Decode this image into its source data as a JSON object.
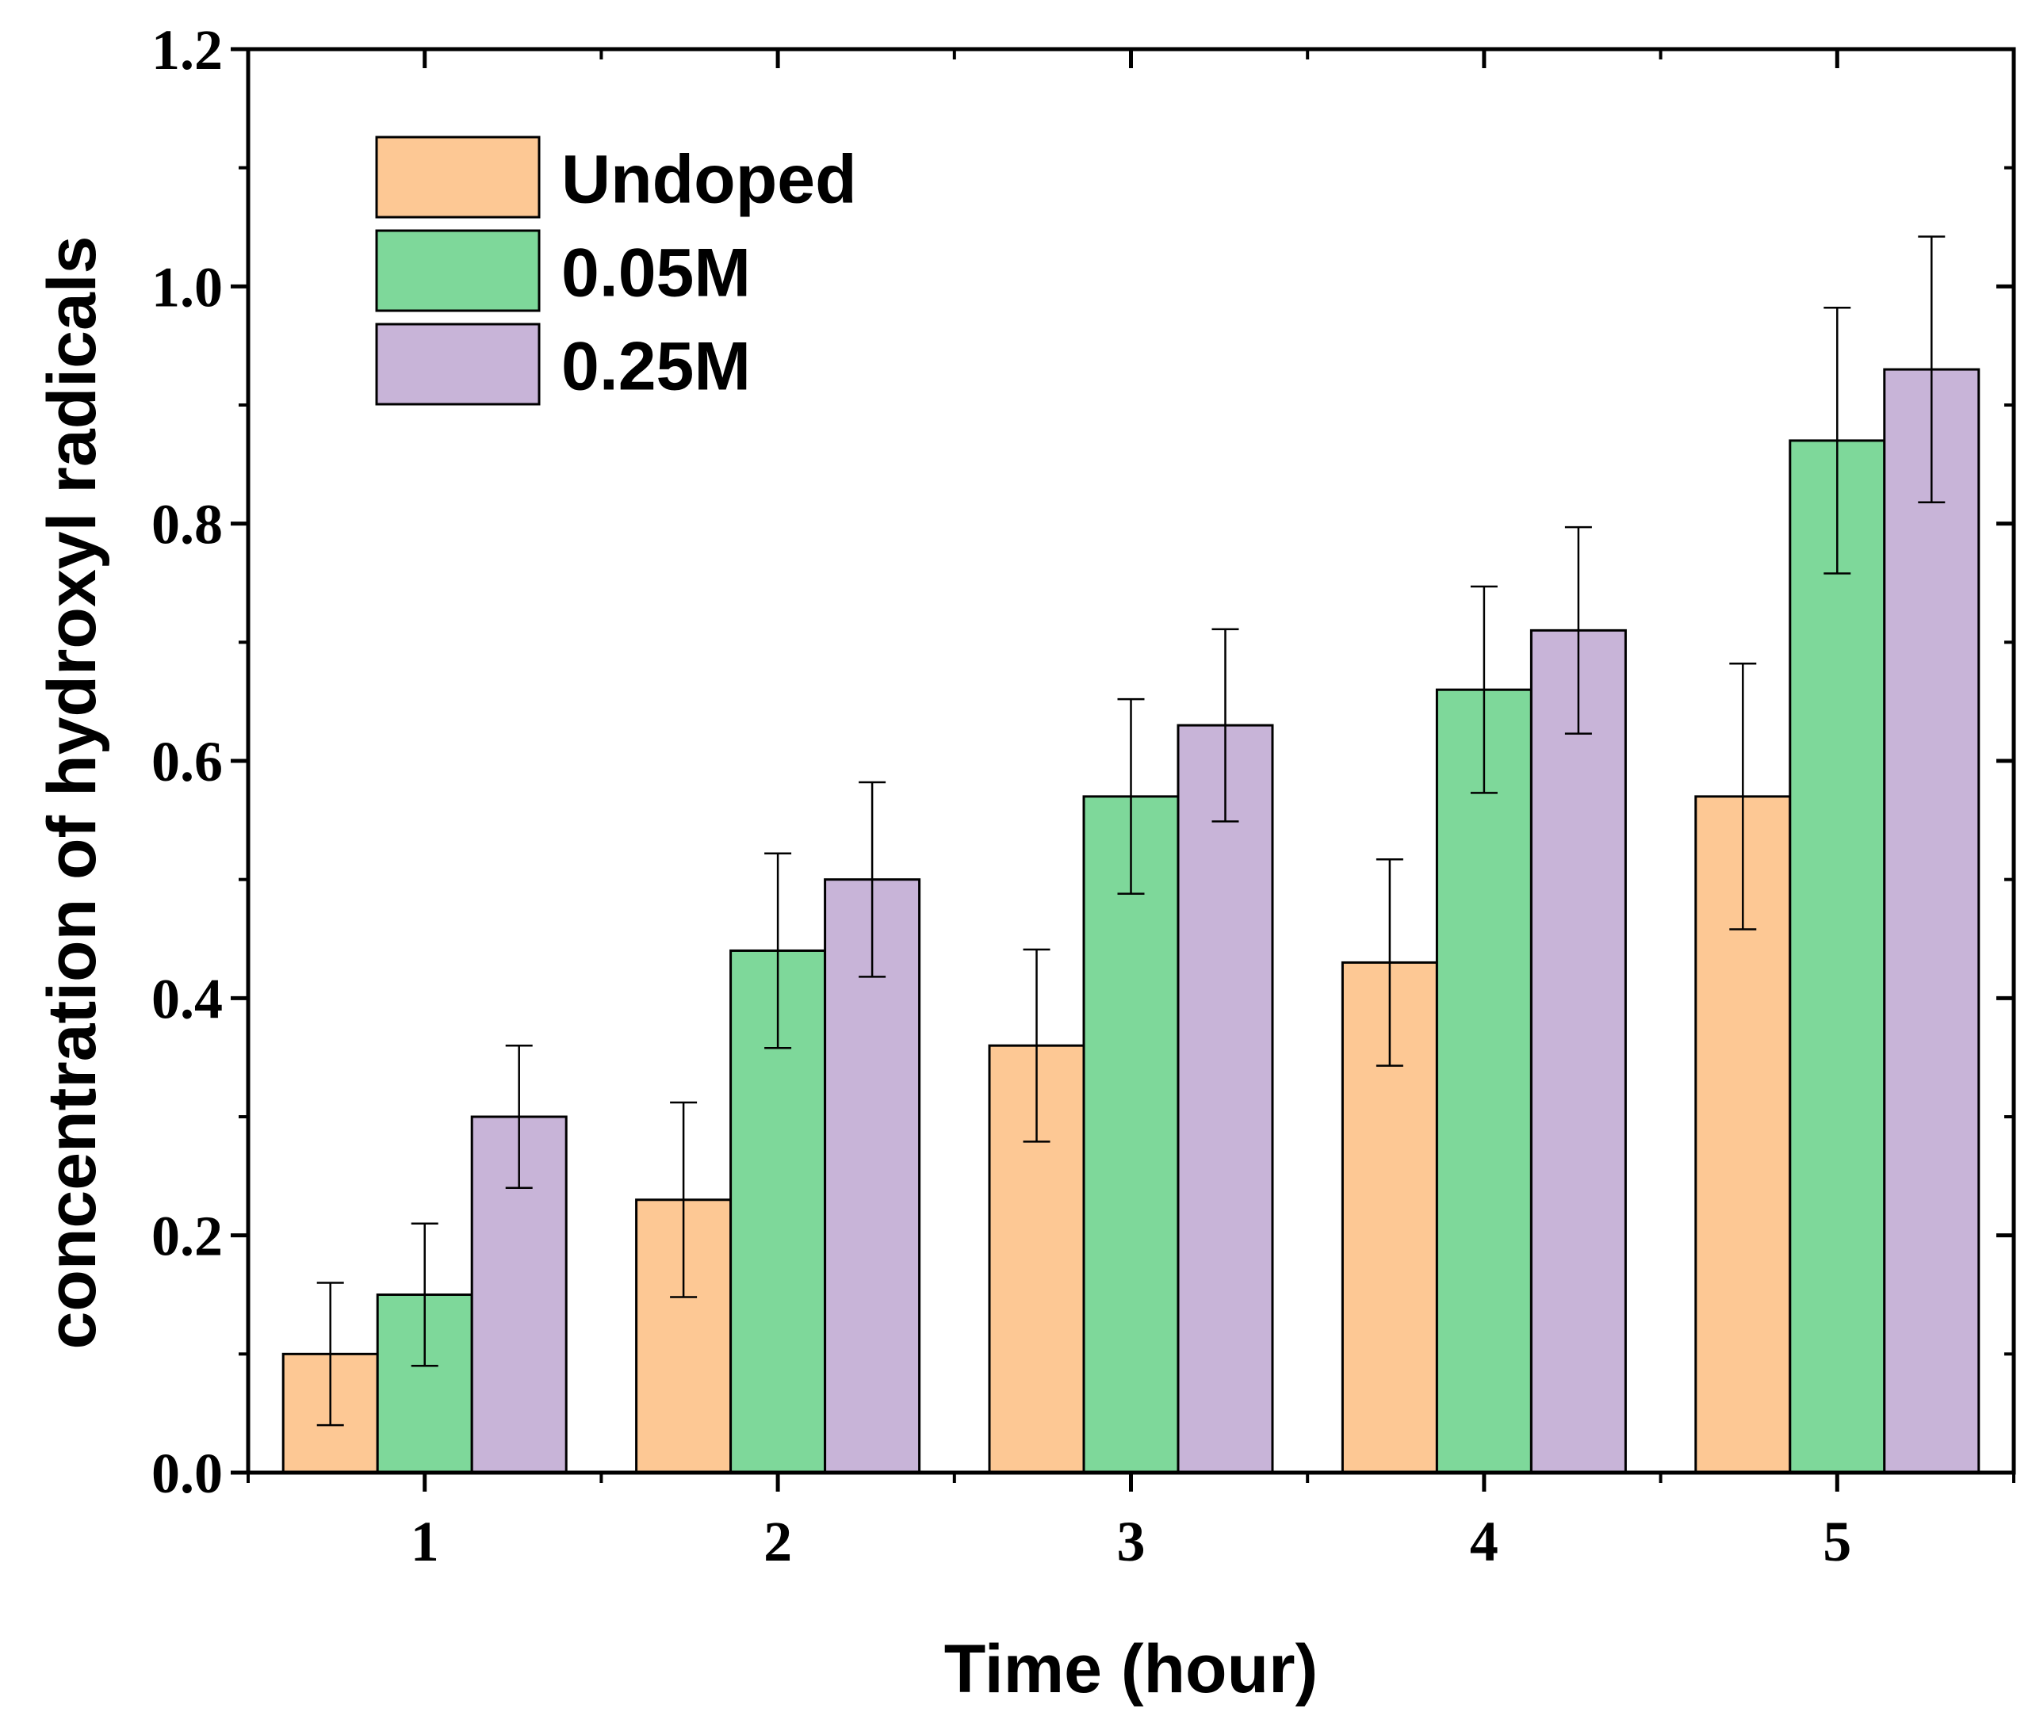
{
  "chart_data": {
    "type": "bar",
    "title": "",
    "xlabel": "Time (hour)",
    "ylabel": "concentration of hydroxyl radicals",
    "categories": [
      "1",
      "2",
      "3",
      "4",
      "5"
    ],
    "ylim": [
      0,
      1.2
    ],
    "yticks": [
      "0.0",
      "0.2",
      "0.4",
      "0.6",
      "0.8",
      "1.0",
      "1.2"
    ],
    "legend_position": "top-left",
    "series": [
      {
        "name": "Undoped",
        "color": "#FDC894",
        "values": [
          0.1,
          0.23,
          0.36,
          0.43,
          0.57
        ],
        "errors": [
          0.06,
          0.082,
          0.081,
          0.087,
          0.112
        ]
      },
      {
        "name": "0.05M",
        "color": "#7ED89A",
        "values": [
          0.15,
          0.44,
          0.57,
          0.66,
          0.87
        ],
        "errors": [
          0.06,
          0.082,
          0.082,
          0.087,
          0.112
        ]
      },
      {
        "name": "0.25M",
        "color": "#C8B4D8",
        "values": [
          0.3,
          0.5,
          0.63,
          0.71,
          0.93
        ],
        "errors": [
          0.06,
          0.082,
          0.081,
          0.087,
          0.112
        ]
      }
    ]
  }
}
